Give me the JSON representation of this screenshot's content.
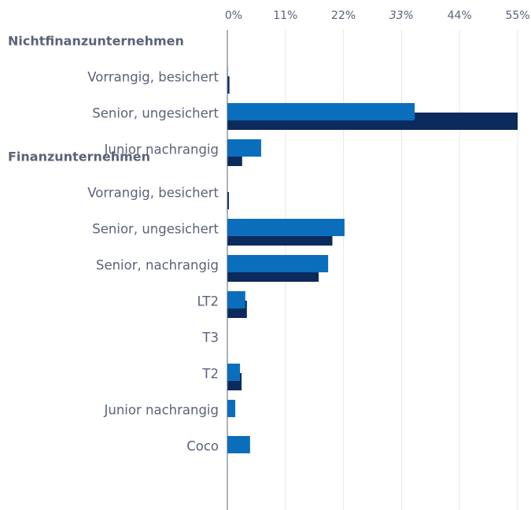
{
  "chart_data": {
    "type": "bar",
    "orientation": "horizontal",
    "colors": [
      "#0a6ebd",
      "#0c2a5c"
    ],
    "xlim": [
      0,
      55
    ],
    "xticks": [
      {
        "value": 0,
        "label": "0%"
      },
      {
        "value": 11,
        "label": "11%"
      },
      {
        "value": 22,
        "label": "22%"
      },
      {
        "value": 33,
        "label": "33%"
      },
      {
        "value": 44,
        "label": "44%"
      },
      {
        "value": 55,
        "label": "55%"
      }
    ],
    "grid": true,
    "groups": [
      {
        "label": "Nichtfinanzunternehmen",
        "categories": [
          "Vorrangig, besichert",
          "Senior, ungesichert",
          "Junior nachrangig"
        ],
        "values": [
          [
            0.1,
            35.5,
            6.4
          ],
          [
            0.4,
            55,
            2.8
          ]
        ]
      },
      {
        "label": "Finanzunternehmen",
        "categories": [
          "Vorrangig, besichert",
          "Senior, ungesichert",
          "Senior, nachrangig",
          "LT2",
          "T3",
          "T2",
          "Junior nachrangig",
          "Coco"
        ],
        "values": [
          [
            0,
            22.2,
            19.1,
            3.4,
            0,
            2.4,
            1.5,
            4.3
          ],
          [
            0.3,
            19.9,
            17.3,
            3.7,
            0,
            2.7,
            0,
            0
          ]
        ]
      }
    ]
  }
}
